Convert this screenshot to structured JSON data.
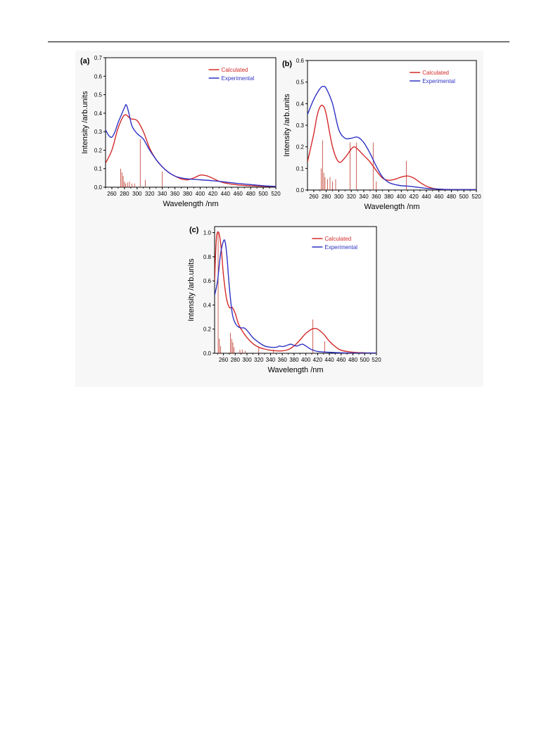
{
  "colors": {
    "calculated": "#d42a2a",
    "experimental": "#2f33c4",
    "sticks": "#c0392b"
  },
  "chart_data": [
    {
      "type": "line",
      "panel_label": "(a)",
      "xlabel": "Wavelength /nm",
      "ylabel": "Intensity /arb.units",
      "xlim": [
        250,
        520
      ],
      "ylim": [
        0,
        0.7
      ],
      "xticks": [
        260,
        280,
        300,
        320,
        340,
        360,
        380,
        400,
        420,
        440,
        460,
        480,
        500,
        520
      ],
      "yticks": [
        0.0,
        0.1,
        0.2,
        0.3,
        0.4,
        0.5,
        0.6,
        0.7
      ],
      "legend_position": "top-right",
      "series": [
        {
          "name": "Calculated",
          "color": "#d42a2a",
          "x": [
            250,
            260,
            270,
            280,
            290,
            300,
            310,
            320,
            330,
            340,
            350,
            360,
            370,
            380,
            390,
            400,
            410,
            420,
            430,
            440,
            460,
            480,
            500,
            520
          ],
          "y": [
            0.13,
            0.2,
            0.32,
            0.39,
            0.37,
            0.36,
            0.3,
            0.21,
            0.15,
            0.11,
            0.08,
            0.06,
            0.045,
            0.04,
            0.05,
            0.065,
            0.062,
            0.048,
            0.032,
            0.022,
            0.012,
            0.008,
            0.005,
            0.004
          ]
        },
        {
          "name": "Experimental",
          "color": "#2f33c4",
          "x": [
            250,
            255,
            260,
            265,
            270,
            275,
            280,
            283,
            287,
            292,
            300,
            310,
            320,
            330,
            340,
            350,
            360,
            370,
            380,
            400,
            420,
            440,
            460,
            480,
            500,
            520
          ],
          "y": [
            0.31,
            0.28,
            0.27,
            0.3,
            0.35,
            0.39,
            0.43,
            0.445,
            0.4,
            0.33,
            0.29,
            0.26,
            0.2,
            0.15,
            0.11,
            0.08,
            0.06,
            0.05,
            0.045,
            0.04,
            0.035,
            0.028,
            0.02,
            0.014,
            0.008,
            0.004
          ]
        }
      ],
      "sticks": {
        "x": [
          274,
          276,
          278,
          280,
          282,
          285,
          288,
          292,
          296,
          305,
          313,
          340
        ],
        "y": [
          0.1,
          0.08,
          0.06,
          0.03,
          0.02,
          0.025,
          0.03,
          0.02,
          0.02,
          0.26,
          0.04,
          0.085
        ]
      }
    },
    {
      "type": "line",
      "panel_label": "(b)",
      "xlabel": "Wavelength /nm",
      "ylabel": "Intensity /arb.units",
      "xlim": [
        250,
        520
      ],
      "ylim": [
        0,
        0.6
      ],
      "xticks": [
        260,
        280,
        300,
        320,
        340,
        360,
        380,
        400,
        420,
        440,
        460,
        480,
        500,
        520
      ],
      "yticks": [
        0.0,
        0.1,
        0.2,
        0.3,
        0.4,
        0.5,
        0.6
      ],
      "legend_position": "top-right",
      "series": [
        {
          "name": "Calculated",
          "color": "#d42a2a",
          "x": [
            250,
            260,
            265,
            270,
            275,
            280,
            290,
            300,
            310,
            320,
            325,
            330,
            340,
            350,
            360,
            370,
            380,
            390,
            400,
            410,
            420,
            430,
            440,
            450,
            460,
            480,
            500,
            520
          ],
          "y": [
            0.13,
            0.26,
            0.34,
            0.385,
            0.39,
            0.35,
            0.2,
            0.13,
            0.15,
            0.19,
            0.2,
            0.19,
            0.16,
            0.13,
            0.09,
            0.055,
            0.045,
            0.05,
            0.06,
            0.065,
            0.055,
            0.035,
            0.018,
            0.008,
            0.004,
            0.002,
            0.002,
            0.002
          ]
        },
        {
          "name": "Experimental",
          "color": "#2f33c4",
          "x": [
            250,
            260,
            270,
            275,
            280,
            290,
            300,
            310,
            320,
            330,
            340,
            350,
            360,
            370,
            380,
            390,
            400,
            410,
            420,
            440,
            460,
            480,
            500,
            520
          ],
          "y": [
            0.35,
            0.42,
            0.47,
            0.48,
            0.47,
            0.4,
            0.28,
            0.24,
            0.24,
            0.245,
            0.22,
            0.17,
            0.11,
            0.06,
            0.035,
            0.025,
            0.02,
            0.018,
            0.015,
            0.008,
            0.004,
            0.002,
            0.002,
            0.002
          ]
        }
      ],
      "sticks": {
        "x": [
          272,
          274,
          276,
          278,
          282,
          286,
          290,
          295,
          318,
          328,
          355,
          360,
          408
        ],
        "y": [
          0.1,
          0.23,
          0.08,
          0.06,
          0.05,
          0.06,
          0.04,
          0.05,
          0.22,
          0.22,
          0.22,
          0.04,
          0.135
        ]
      }
    },
    {
      "type": "line",
      "panel_label": "(c)",
      "xlabel": "Wavelength /nm",
      "ylabel": "Intensity /arb.units",
      "xlim": [
        245,
        520
      ],
      "ylim": [
        0,
        1.05
      ],
      "xticks": [
        260,
        280,
        300,
        320,
        340,
        360,
        380,
        400,
        420,
        440,
        460,
        480,
        500,
        520
      ],
      "yticks": [
        0.0,
        0.2,
        0.4,
        0.6,
        0.8,
        1.0
      ],
      "legend_position": "top-right",
      "series": [
        {
          "name": "Calculated",
          "color": "#d42a2a",
          "x": [
            245,
            248,
            252,
            256,
            260,
            265,
            270,
            275,
            280,
            285,
            290,
            300,
            310,
            320,
            330,
            340,
            350,
            360,
            370,
            380,
            390,
            400,
            410,
            415,
            420,
            430,
            440,
            450,
            460,
            480,
            500,
            520
          ],
          "y": [
            0.6,
            0.95,
            1.0,
            0.88,
            0.65,
            0.46,
            0.38,
            0.38,
            0.33,
            0.25,
            0.2,
            0.13,
            0.08,
            0.05,
            0.035,
            0.025,
            0.02,
            0.02,
            0.03,
            0.06,
            0.11,
            0.165,
            0.2,
            0.205,
            0.2,
            0.16,
            0.1,
            0.055,
            0.025,
            0.008,
            0.004,
            0.002
          ]
        },
        {
          "name": "Experimental",
          "color": "#2f33c4",
          "x": [
            245,
            250,
            255,
            260,
            263,
            266,
            270,
            275,
            280,
            285,
            290,
            295,
            300,
            310,
            320,
            330,
            340,
            350,
            355,
            360,
            365,
            370,
            375,
            380,
            385,
            390,
            395,
            400,
            410,
            420,
            440,
            460,
            480,
            500,
            520
          ],
          "y": [
            0.48,
            0.6,
            0.82,
            0.93,
            0.92,
            0.8,
            0.55,
            0.33,
            0.25,
            0.22,
            0.21,
            0.21,
            0.19,
            0.13,
            0.09,
            0.06,
            0.05,
            0.05,
            0.06,
            0.055,
            0.06,
            0.07,
            0.075,
            0.065,
            0.06,
            0.07,
            0.075,
            0.06,
            0.03,
            0.015,
            0.008,
            0.004,
            0.002,
            0.002,
            0.002
          ]
        }
      ],
      "sticks": {
        "x": [
          251,
          253,
          255,
          272,
          274,
          276,
          278,
          288,
          292,
          297,
          320,
          345,
          412,
          432
        ],
        "y": [
          1.0,
          0.12,
          0.06,
          0.17,
          0.12,
          0.09,
          0.05,
          0.03,
          0.03,
          0.02,
          0.05,
          0.03,
          0.28,
          0.1
        ]
      }
    }
  ]
}
